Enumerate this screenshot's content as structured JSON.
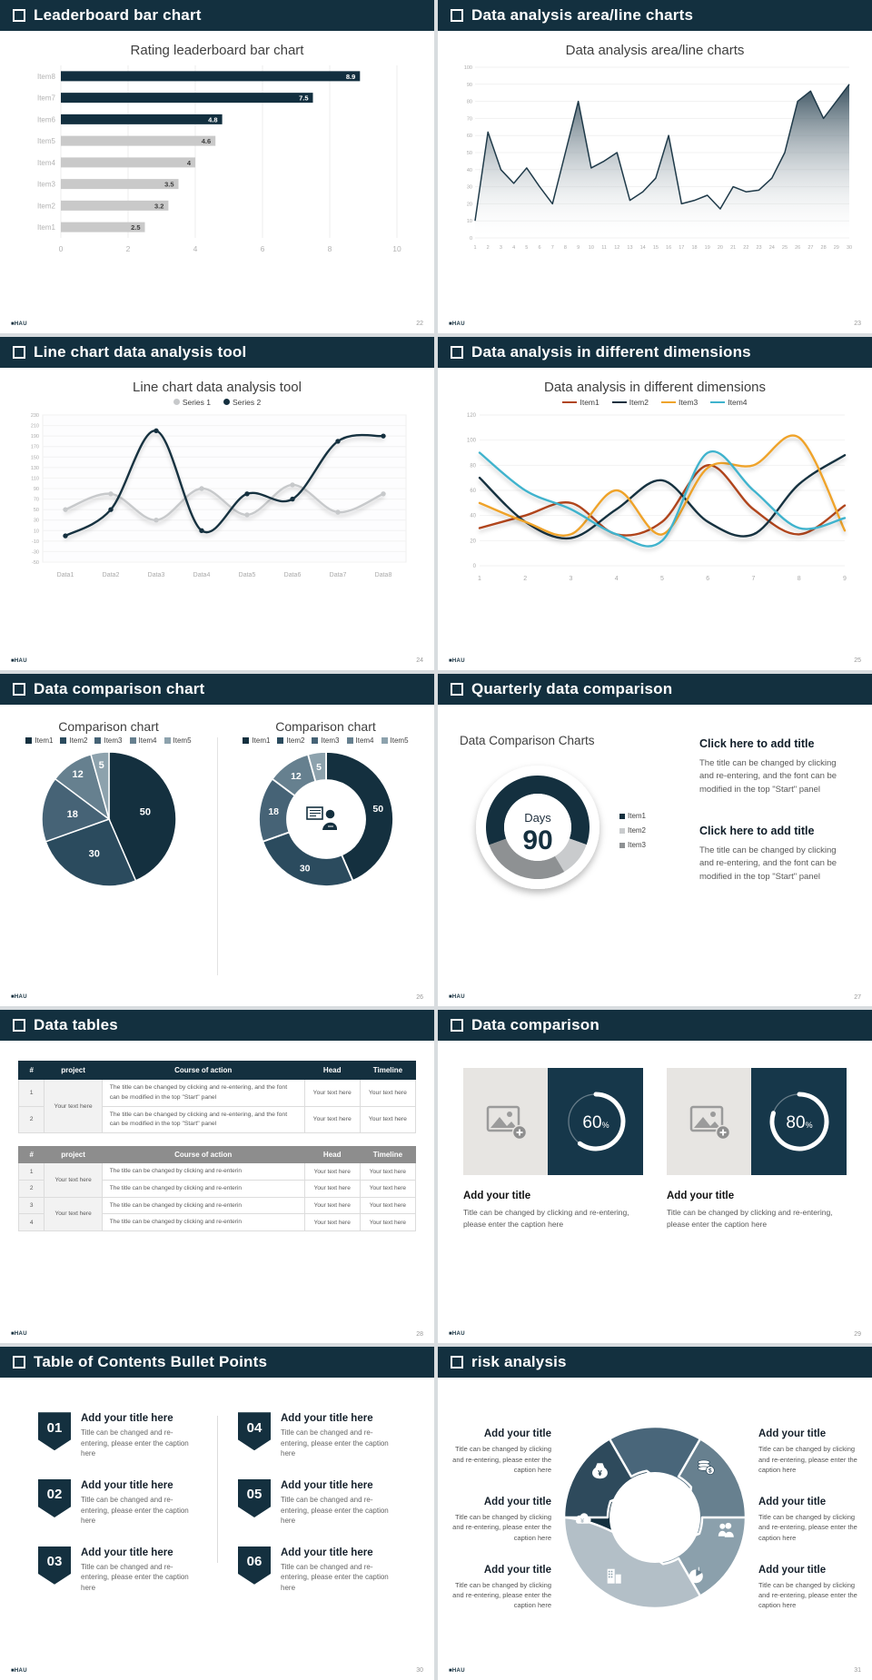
{
  "footer": {
    "logo": "■HAU"
  },
  "slides": [
    {
      "header": "Leaderboard bar chart",
      "page": "22"
    },
    {
      "header": "Data analysis area/line charts",
      "page": "23"
    },
    {
      "header": "Line chart data analysis tool",
      "page": "24"
    },
    {
      "header": "Data analysis in different dimensions",
      "page": "25"
    },
    {
      "header": "Data comparison chart",
      "page": "26"
    },
    {
      "header": "Quarterly data comparison",
      "page": "27",
      "blocks": [
        {
          "title": "Click here to add title",
          "body": "The title can be changed by clicking and re-entering, and the font can be modified in the top \"Start\" panel"
        },
        {
          "title": "Click here to add title",
          "body": "The title can be changed by clicking and re-entering, and the font can be modified in the top \"Start\" panel"
        }
      ]
    },
    {
      "header": "Data tables",
      "page": "28",
      "tables": {
        "headers": [
          "#",
          "project",
          "Course of action",
          "Head",
          "Timeline"
        ],
        "t1": {
          "project": "Your text here",
          "rows": [
            {
              "num": "1",
              "course": "The title can be changed by clicking and re-entering, and the font can be modified in the top \"Start\" panel",
              "head": "Your text here",
              "timeline": "Your text here"
            },
            {
              "num": "2",
              "course": "The title can be changed by clicking and re-entering, and the font can be modified in the top \"Start\" panel",
              "head": "Your text here",
              "timeline": "Your text here"
            }
          ]
        },
        "t2": {
          "groups": [
            {
              "project": "Your text here",
              "rows": [
                {
                  "num": "1",
                  "course": "The title can be changed by clicking and re-enterin",
                  "head": "Your text here",
                  "timeline": "Your text here"
                },
                {
                  "num": "2",
                  "course": "The title can be changed by clicking and re-enterin",
                  "head": "Your text here",
                  "timeline": "Your text here"
                }
              ]
            },
            {
              "project": "Your text here",
              "rows": [
                {
                  "num": "3",
                  "course": "The title can be changed by clicking and re-enterin",
                  "head": "Your text here",
                  "timeline": "Your text here"
                },
                {
                  "num": "4",
                  "course": "The title can be changed by clicking and re-enterin",
                  "head": "Your text here",
                  "timeline": "Your text here"
                }
              ]
            }
          ]
        }
      }
    },
    {
      "header": "Data comparison",
      "page": "29",
      "cards": [
        {
          "title": "Add your title",
          "caption": "Title can be changed by clicking and re-entering, please enter the caption here"
        },
        {
          "title": "Add your title",
          "caption": "Title can be changed by clicking and re-entering, please enter the caption here"
        }
      ]
    },
    {
      "header": "Table of Contents Bullet Points",
      "page": "30",
      "items": [
        {
          "num": "01",
          "title": "Add your title here",
          "caption": "Title can be changed and re-entering, please enter the caption here"
        },
        {
          "num": "02",
          "title": "Add your title here",
          "caption": "Title can be changed and re-entering, please enter the caption here"
        },
        {
          "num": "03",
          "title": "Add your title here",
          "caption": "Title can be changed and re-entering, please enter the caption here"
        },
        {
          "num": "04",
          "title": "Add your title here",
          "caption": "Title can be changed and re-entering, please enter the caption here"
        },
        {
          "num": "05",
          "title": "Add your title here",
          "caption": "Title can be changed and re-entering, please enter the caption here"
        },
        {
          "num": "06",
          "title": "Add your title here",
          "caption": "Title can be changed and re-entering, please enter the caption here"
        }
      ]
    },
    {
      "header": "risk analysis",
      "page": "31",
      "items": [
        {
          "title": "Add your title",
          "caption": "Title can be changed by clicking and re-entering, please enter the caption here"
        },
        {
          "title": "Add your title",
          "caption": "Title can be changed by clicking and re-entering, please enter the caption here"
        },
        {
          "title": "Add your title",
          "caption": "Title can be changed by clicking and re-entering, please enter the caption here"
        },
        {
          "title": "Add your title",
          "caption": "Title can be changed by clicking and re-entering, please enter the caption here"
        },
        {
          "title": "Add your title",
          "caption": "Title can be changed by clicking and re-entering, please enter the caption here"
        },
        {
          "title": "Add your title",
          "caption": "Title can be changed by clicking and re-entering, please enter the caption here"
        }
      ]
    }
  ],
  "chart_data": [
    {
      "id": "leaderboard",
      "type": "bar",
      "orientation": "horizontal",
      "title": "Rating leaderboard bar chart",
      "categories": [
        "Item1",
        "Item2",
        "Item3",
        "Item4",
        "Item5",
        "Item6",
        "Item7",
        "Item8"
      ],
      "values": [
        2.5,
        3.2,
        3.5,
        4,
        4.6,
        4.8,
        7.5,
        8.9
      ],
      "bar_colors": [
        "#c9c9c9",
        "#c9c9c9",
        "#c9c9c9",
        "#c9c9c9",
        "#c9c9c9",
        "#122f3f",
        "#122f3f",
        "#122f3f"
      ],
      "xlim": [
        0,
        10
      ],
      "xticks": [
        0,
        2,
        4,
        6,
        8,
        10
      ]
    },
    {
      "id": "area",
      "type": "area",
      "title": "Data analysis area/line charts",
      "x": [
        1,
        2,
        3,
        4,
        5,
        6,
        7,
        8,
        9,
        10,
        11,
        12,
        13,
        14,
        15,
        16,
        17,
        18,
        19,
        20,
        21,
        22,
        23,
        24,
        25,
        26,
        27,
        28,
        29,
        30
      ],
      "values": [
        10,
        62,
        40,
        32,
        41,
        30,
        20,
        50,
        80,
        41,
        45,
        50,
        22,
        27,
        35,
        60,
        20,
        22,
        25,
        17,
        30,
        27,
        28,
        35,
        50,
        80,
        86,
        70,
        80,
        90
      ],
      "ylim": [
        0,
        100
      ],
      "ystep": 10,
      "line_color": "#1f3a49",
      "fill_top": "#2e4756",
      "fill_bottom": "#ffffff"
    },
    {
      "id": "line-tool",
      "type": "line",
      "title": "Line chart data analysis tool",
      "categories": [
        "Data1",
        "Data2",
        "Data3",
        "Data4",
        "Data5",
        "Data6",
        "Data7",
        "Data8"
      ],
      "ylim": [
        -50,
        230
      ],
      "ystep": 20,
      "panel": true,
      "dots": true,
      "centered": true,
      "series": [
        {
          "name": "Series 1",
          "color": "#c7c9cb",
          "values": [
            50,
            80,
            30,
            90,
            40,
            97,
            45,
            80
          ]
        },
        {
          "name": "Series 2",
          "color": "#15303f",
          "values": [
            0,
            50,
            200,
            10,
            80,
            70,
            180,
            190
          ]
        }
      ]
    },
    {
      "id": "dimensions",
      "type": "line",
      "title": "Data analysis in different dimensions",
      "categories": [
        "1",
        "2",
        "3",
        "4",
        "5",
        "6",
        "7",
        "8",
        "9"
      ],
      "ylim": [
        0,
        120
      ],
      "ystep": 20,
      "panel": false,
      "dots": false,
      "centered": false,
      "series": [
        {
          "name": "Item1",
          "color": "#b0451f",
          "values": [
            30,
            40,
            50,
            25,
            35,
            80,
            45,
            25,
            48
          ]
        },
        {
          "name": "Item2",
          "color": "#14303f",
          "values": [
            70,
            35,
            22,
            45,
            68,
            35,
            25,
            65,
            88
          ]
        },
        {
          "name": "Item3",
          "color": "#efa32a",
          "values": [
            50,
            35,
            25,
            60,
            25,
            78,
            80,
            102,
            28
          ]
        },
        {
          "name": "Item4",
          "color": "#3fb3cd",
          "values": [
            90,
            60,
            45,
            25,
            20,
            90,
            60,
            30,
            38
          ]
        }
      ]
    },
    {
      "id": "comparison-pie",
      "type": "pie",
      "title": "Comparison chart",
      "labels": [
        "Item1",
        "Item2",
        "Item3",
        "Item4",
        "Item5"
      ],
      "values": [
        50,
        30,
        18,
        12,
        5
      ],
      "colors": [
        "#14303f",
        "#2b4b5e",
        "#466376",
        "#66808f",
        "#8da2ad"
      ]
    },
    {
      "id": "comparison-donut",
      "type": "donut",
      "title": "Comparison chart",
      "labels": [
        "Item1",
        "Item2",
        "Item3",
        "Item4",
        "Item5"
      ],
      "values": [
        50,
        30,
        18,
        12,
        5
      ],
      "colors": [
        "#14303f",
        "#2b4b5e",
        "#466376",
        "#66808f",
        "#8da2ad"
      ],
      "center_icon": "presenter-icon"
    },
    {
      "id": "quarterly-donut",
      "type": "qdonut",
      "title": "Data Comparison Charts",
      "labels": [
        "Item1",
        "Item2",
        "Item3"
      ],
      "values": [
        61,
        11,
        28
      ],
      "colors": [
        "#14303f",
        "#c9cbcd",
        "#8e9193"
      ],
      "start_angle": 250,
      "center": {
        "label": "Days",
        "value": "90"
      }
    },
    {
      "id": "progress-60",
      "type": "ring",
      "percent": 60,
      "suffix": "%",
      "color": "#ffffff"
    },
    {
      "id": "progress-80",
      "type": "ring",
      "percent": 80,
      "suffix": "%",
      "color": "#ffffff"
    },
    {
      "id": "risk-wheel",
      "type": "wheel",
      "colors": [
        "#14303f",
        "#2e4a5c",
        "#49667a",
        "#67808f",
        "#8ba0ac",
        "#b3bfc7"
      ],
      "icons": [
        "money-bag-icon",
        "coins-icon",
        "people-icon",
        "pie-chart-icon",
        "building-icon",
        "cloud-yen-icon"
      ]
    }
  ]
}
